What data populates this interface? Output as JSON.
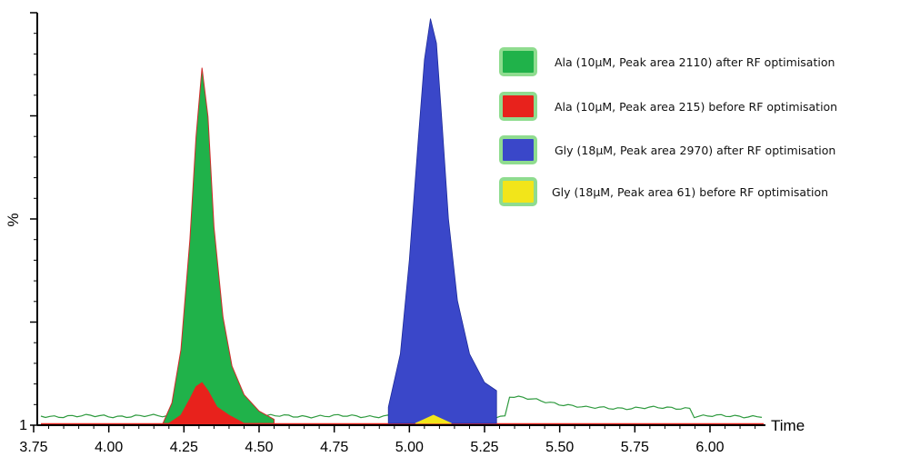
{
  "chart_data": {
    "type": "area",
    "title": "",
    "xlabel": "Time",
    "ylabel": "%",
    "y_tick_labels": [
      "1"
    ],
    "x_tick_labels": [
      "3.75",
      "4.00",
      "4.25",
      "4.50",
      "4.75",
      "5.00",
      "5.25",
      "5.50",
      "5.75",
      "6.00"
    ],
    "xlim": [
      3.75,
      6.17
    ],
    "ylim": [
      0,
      100
    ],
    "legend_position": "top-right",
    "series": [
      {
        "name": "Ala (10µM, Peak area 2110) after RF optimisation",
        "color": "#20b24a",
        "x": [
          4.18,
          4.21,
          4.24,
          4.27,
          4.29,
          4.31,
          4.33,
          4.35,
          4.38,
          4.41,
          4.45,
          4.5,
          4.55
        ],
        "y": [
          0,
          5,
          18,
          45,
          70,
          87,
          75,
          48,
          26,
          14,
          7,
          3,
          1
        ]
      },
      {
        "name": "Ala (10µM, Peak area 215) before RF optimisation",
        "color": "#e8221c",
        "x": [
          4.2,
          4.24,
          4.27,
          4.29,
          4.31,
          4.33,
          4.36,
          4.4,
          4.45
        ],
        "y": [
          0,
          2,
          6,
          9,
          10,
          8,
          4,
          2,
          0
        ]
      },
      {
        "name": "Gly (18µM, Peak area 2970) after RF optimisation",
        "color": "#3a47c9",
        "x": [
          4.93,
          4.97,
          5.0,
          5.03,
          5.05,
          5.07,
          5.09,
          5.11,
          5.13,
          5.16,
          5.2,
          5.25,
          5.29
        ],
        "y": [
          4,
          17,
          40,
          70,
          89,
          99,
          93,
          72,
          50,
          30,
          17,
          10,
          8
        ]
      },
      {
        "name": "Gly (18µM, Peak area 61) before RF optimisation",
        "color": "#f2e51a",
        "x": [
          5.02,
          5.05,
          5.08,
          5.11,
          5.14
        ],
        "y": [
          0,
          1,
          2,
          1,
          0
        ]
      }
    ]
  }
}
